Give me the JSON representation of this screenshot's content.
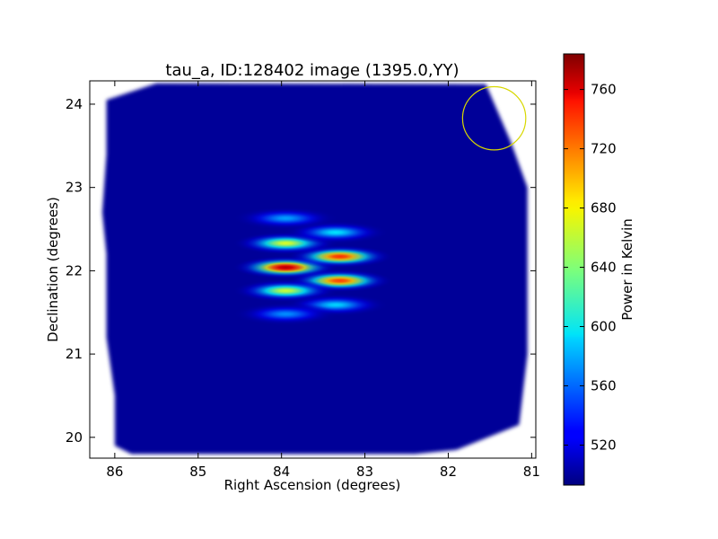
{
  "chart_data": {
    "type": "heatmap",
    "title": "tau_a, ID:128402 image (1395.0,YY)",
    "xlabel": "Right Ascension (degrees)",
    "ylabel": "Declination (degrees)",
    "xlim": [
      86.3,
      80.95
    ],
    "ylim": [
      19.75,
      24.28
    ],
    "x_ticks": [
      86,
      85,
      84,
      83,
      82,
      81
    ],
    "y_ticks": [
      20,
      21,
      22,
      23,
      24
    ],
    "colorbar": {
      "label": "Power in Kelvin",
      "range": [
        493,
        784
      ],
      "ticks": [
        520,
        560,
        600,
        640,
        680,
        720,
        760
      ],
      "colormap": "jet"
    },
    "background_value": 500,
    "footprint": [
      [
        86.1,
        24.05
      ],
      [
        85.5,
        24.25
      ],
      [
        81.55,
        24.24
      ],
      [
        81.25,
        23.55
      ],
      [
        81.05,
        23.0
      ],
      [
        81.05,
        21.0
      ],
      [
        81.15,
        20.15
      ],
      [
        81.9,
        19.85
      ],
      [
        82.4,
        19.8
      ],
      [
        85.8,
        19.8
      ],
      [
        86.0,
        19.9
      ],
      [
        86.0,
        20.5
      ],
      [
        86.1,
        21.2
      ],
      [
        86.1,
        22.2
      ],
      [
        86.15,
        22.7
      ],
      [
        86.1,
        23.4
      ]
    ],
    "sources": [
      {
        "ra": 83.95,
        "dec": 22.04,
        "value": 770
      },
      {
        "ra": 83.3,
        "dec": 22.17,
        "value": 735
      },
      {
        "ra": 83.3,
        "dec": 21.88,
        "value": 730
      },
      {
        "ra": 83.95,
        "dec": 22.33,
        "value": 665
      },
      {
        "ra": 83.95,
        "dec": 21.76,
        "value": 660
      },
      {
        "ra": 83.35,
        "dec": 22.46,
        "value": 595
      },
      {
        "ra": 83.35,
        "dec": 21.59,
        "value": 590
      },
      {
        "ra": 83.95,
        "dec": 22.63,
        "value": 575
      },
      {
        "ra": 83.95,
        "dec": 21.48,
        "value": 570
      }
    ],
    "beam_circle": {
      "ra": 81.45,
      "dec": 23.83,
      "radius_deg": 0.38,
      "color": "#d8d800"
    },
    "grid": false
  }
}
